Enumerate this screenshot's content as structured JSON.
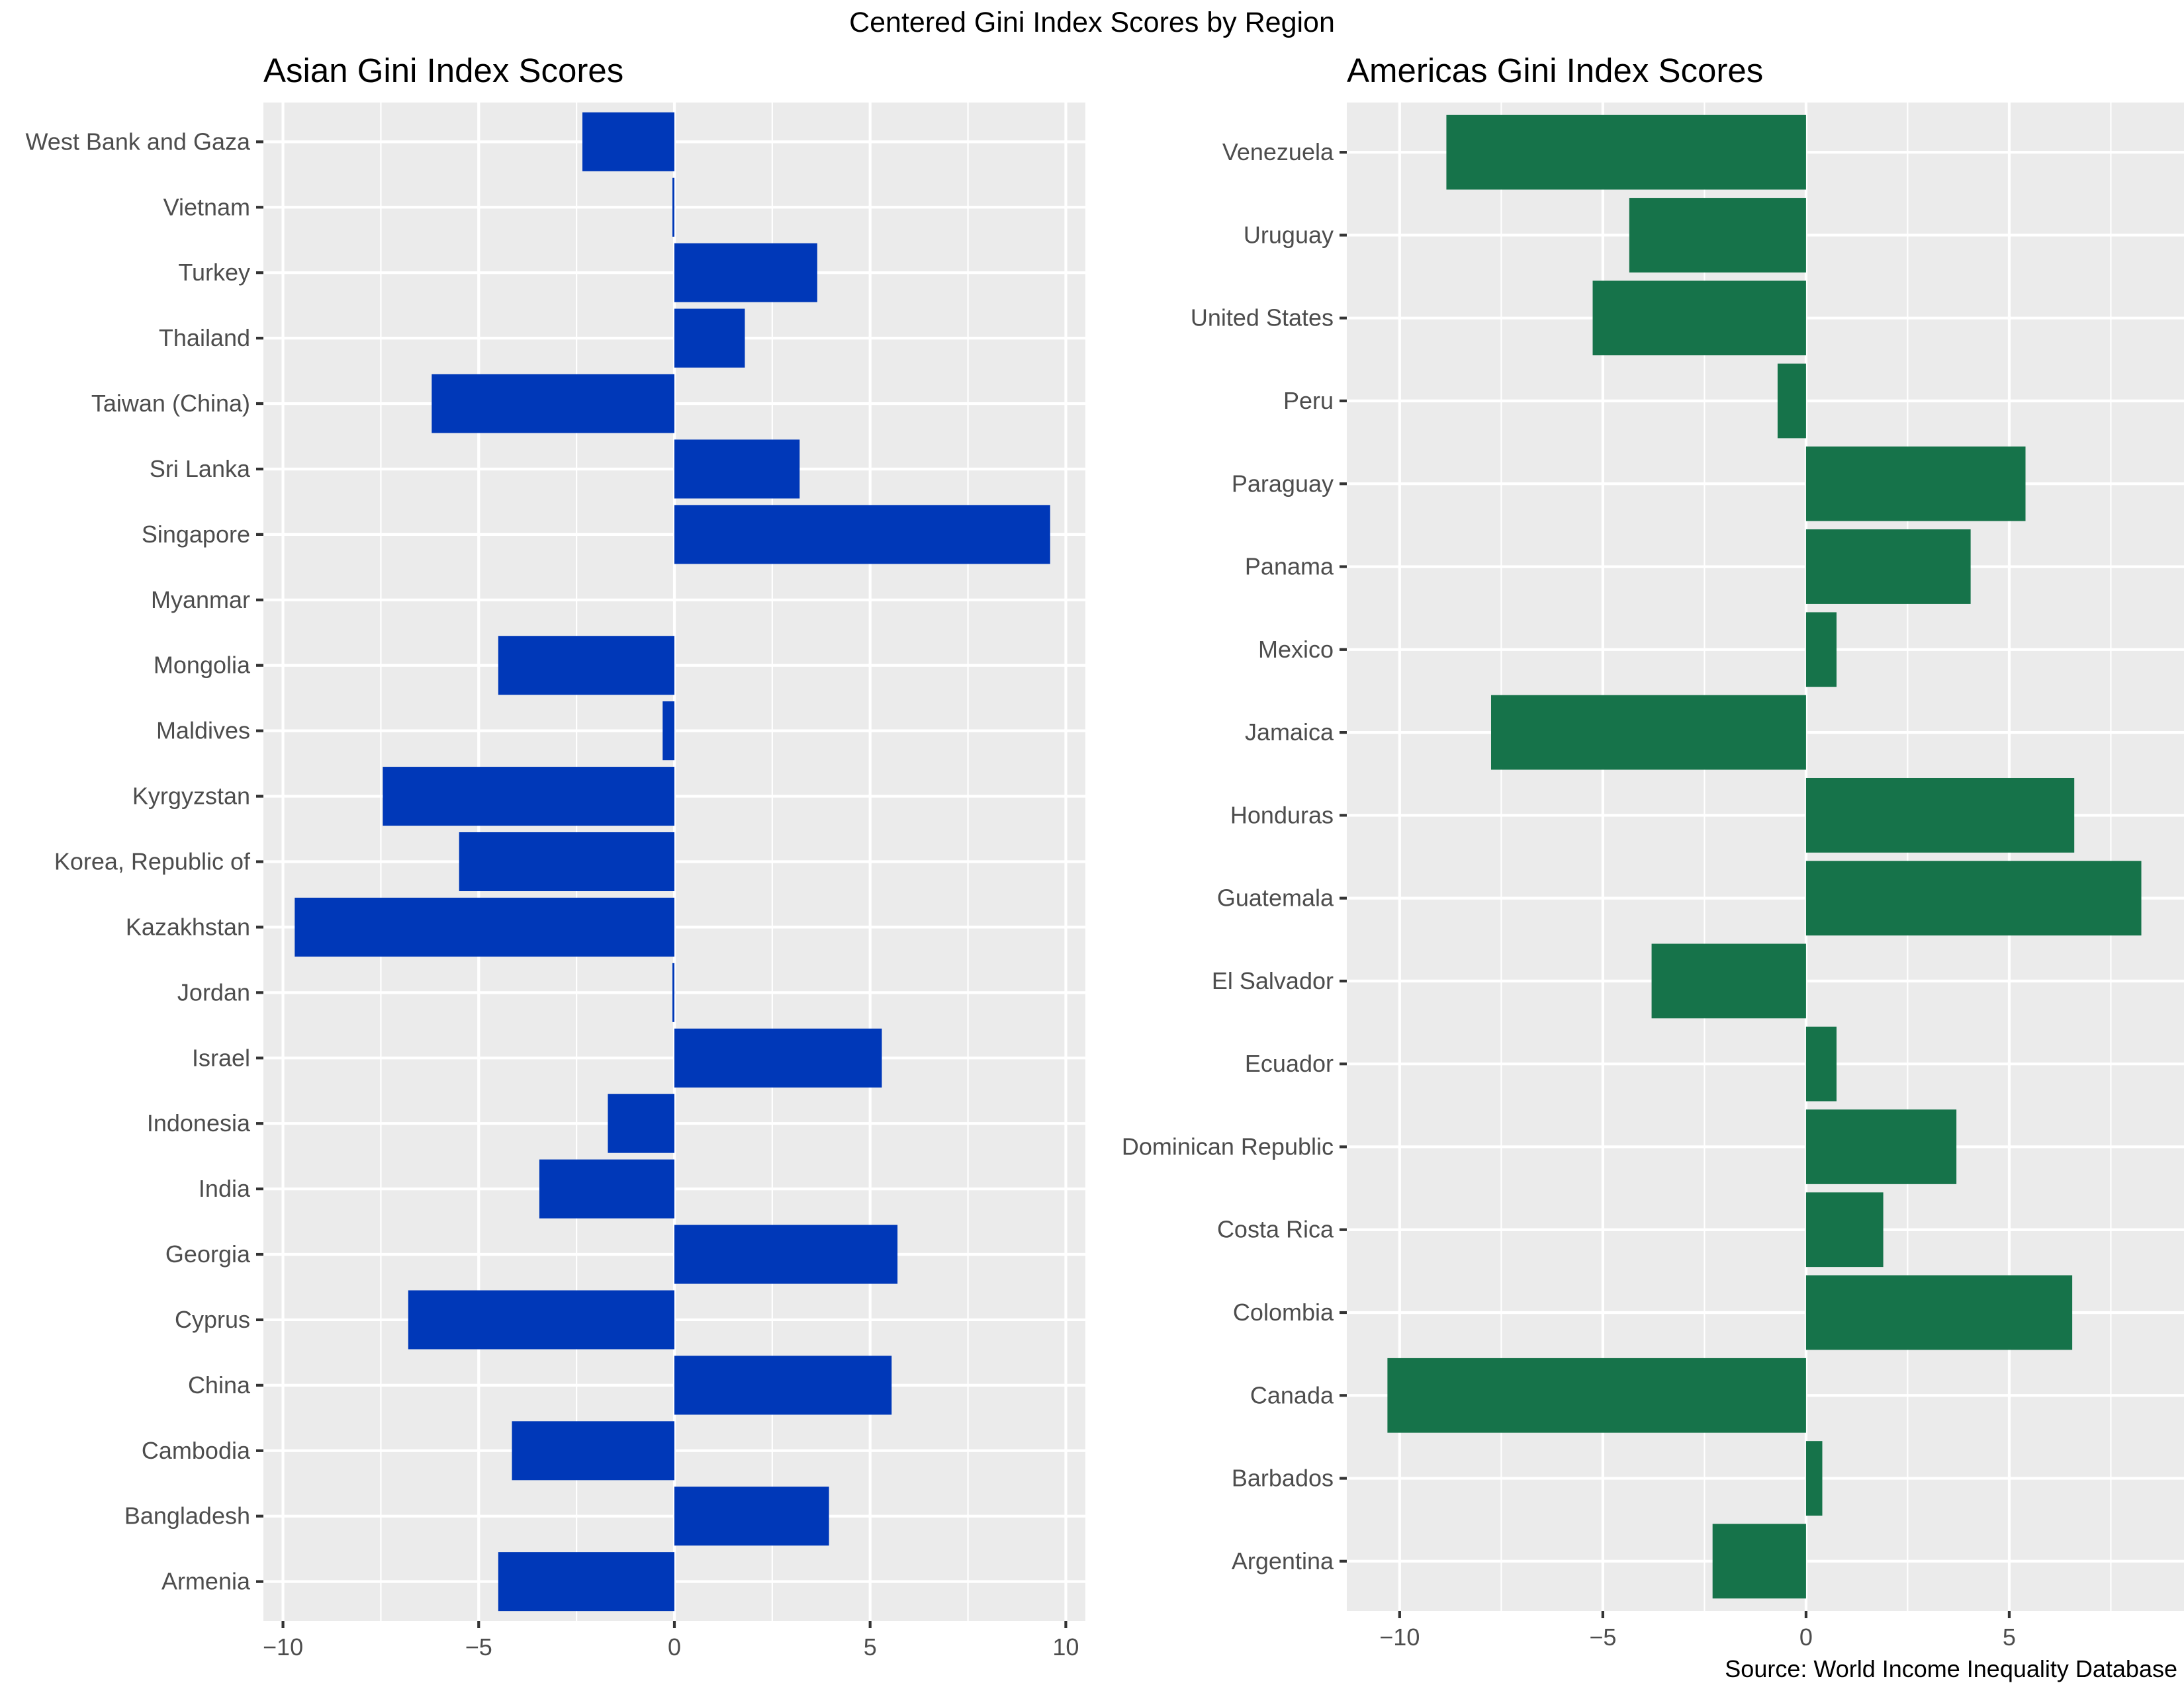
{
  "figure": {
    "title": "Centered Gini Index Scores by Region",
    "caption": "Source: World Income Inequality Database"
  },
  "chart_data": [
    {
      "type": "bar",
      "orientation": "horizontal",
      "title": "Asian Gini Index Scores",
      "xlabel": "",
      "ylabel": "",
      "xlim": [
        -10.5,
        10.5
      ],
      "x_ticks": [
        -10,
        -5,
        0,
        5,
        10
      ],
      "x_tick_labels": [
        "−10",
        "−5",
        "0",
        "5",
        "10"
      ],
      "grid": true,
      "color": "#0038B8",
      "categories": [
        "Armenia",
        "Bangladesh",
        "Cambodia",
        "China",
        "Cyprus",
        "Georgia",
        "India",
        "Indonesia",
        "Israel",
        "Jordan",
        "Kazakhstan",
        "Korea, Republic of",
        "Kyrgyzstan",
        "Maldives",
        "Mongolia",
        "Myanmar",
        "Singapore",
        "Sri Lanka",
        "Taiwan (China)",
        "Thailand",
        "Turkey",
        "Vietnam",
        "West Bank and Gaza"
      ],
      "values": [
        -4.5,
        3.95,
        -4.15,
        5.55,
        -6.8,
        5.7,
        -3.45,
        -1.7,
        5.3,
        -0.05,
        -9.7,
        -5.5,
        -7.45,
        -0.3,
        -4.5,
        0.0,
        9.6,
        3.2,
        -6.2,
        1.8,
        3.65,
        -0.05,
        -2.35
      ]
    },
    {
      "type": "bar",
      "orientation": "horizontal",
      "title": "Americas Gini Index Scores",
      "xlabel": "",
      "ylabel": "",
      "xlim": [
        -11.3,
        9.3
      ],
      "x_ticks": [
        -10,
        -5,
        0,
        5
      ],
      "x_tick_labels": [
        "−10",
        "−5",
        "0",
        "5"
      ],
      "grid": true,
      "color": "#16734A",
      "categories": [
        "Argentina",
        "Barbados",
        "Canada",
        "Colombia",
        "Costa Rica",
        "Dominican Republic",
        "Ecuador",
        "El Salvador",
        "Guatemala",
        "Honduras",
        "Jamaica",
        "Mexico",
        "Panama",
        "Paraguay",
        "Peru",
        "United States",
        "Uruguay",
        "Venezuela"
      ],
      "values": [
        -2.3,
        0.4,
        -10.3,
        6.55,
        1.9,
        3.7,
        0.75,
        -3.8,
        8.25,
        6.6,
        -7.75,
        0.75,
        4.05,
        5.4,
        -0.7,
        -5.25,
        -4.35,
        -8.85
      ]
    }
  ]
}
